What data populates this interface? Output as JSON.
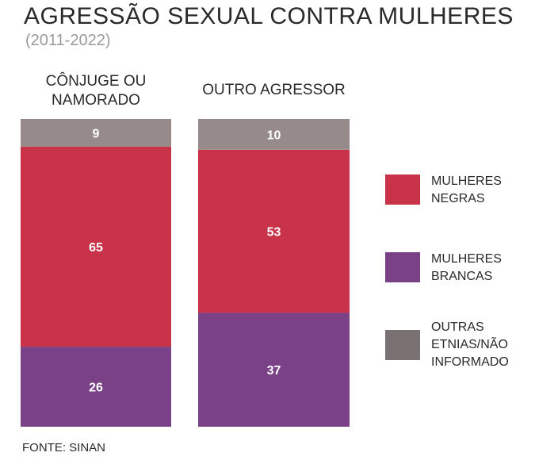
{
  "title": "AGRESSÃO SEXUAL CONTRA MULHERES",
  "subtitle": "(2011-2022)",
  "source": "FONTE: SINAN",
  "colors": {
    "negras": "#c8334a",
    "brancas": "#7a4187",
    "outras": "#968a8a"
  },
  "chart_data": {
    "type": "bar",
    "stacked": true,
    "categories": [
      "CÔNJUGE OU\nNAMORADO",
      "OUTRO AGRESSOR"
    ],
    "series": [
      {
        "name": "MULHERES BRANCAS",
        "values": [
          26,
          37
        ],
        "color": "#7a4187"
      },
      {
        "name": "MULHERES NEGRAS",
        "values": [
          65,
          53
        ],
        "color": "#c8334a"
      },
      {
        "name": "OUTRAS ETNIAS/NÃO INFORMADO",
        "values": [
          9,
          10
        ],
        "color": "#968a8a"
      }
    ],
    "ylim": [
      0,
      100
    ],
    "legend": "right"
  },
  "legend": [
    {
      "label": "MULHERES\nNEGRAS",
      "color": "#c8334a"
    },
    {
      "label": "MULHERES\nBRANCAS",
      "color": "#7a4187"
    },
    {
      "label": "OUTRAS\nETNIAS/NÃO\nINFORMADO",
      "color": "#7a7272"
    }
  ]
}
